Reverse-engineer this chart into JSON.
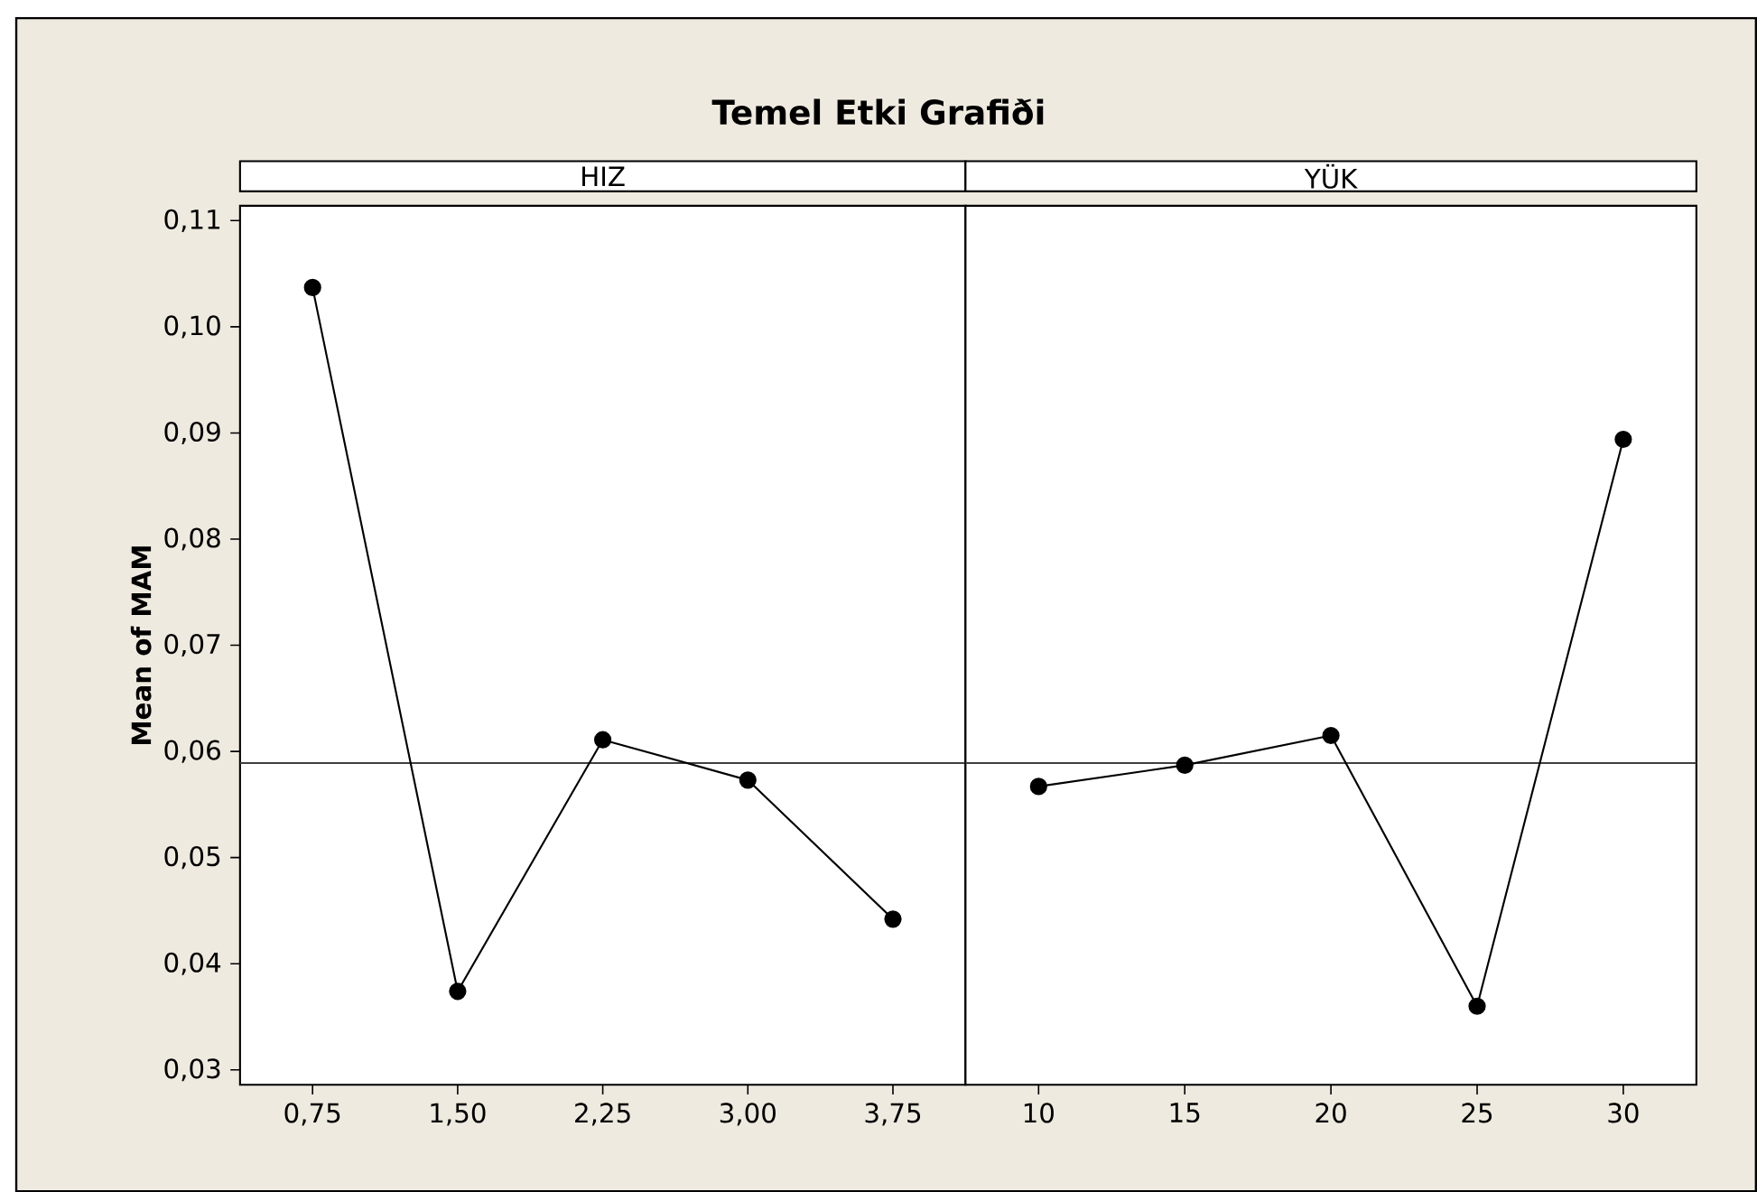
{
  "chart_data": [
    {
      "type": "line",
      "title": "Temel Etki Grafiði",
      "subtitle": "HIZ",
      "ylabel": "Mean of MAM",
      "categories": [
        "0,75",
        "1,50",
        "2,25",
        "3,00",
        "3,75"
      ],
      "series": [
        {
          "color": "#000000",
          "values": [
            0.1037,
            0.0374,
            0.0611,
            0.0573,
            0.0442
          ]
        }
      ],
      "ylim": [
        0.0286,
        0.1114
      ],
      "yticks": [
        {
          "value": 0.03,
          "label": "0,03"
        },
        {
          "value": 0.04,
          "label": "0,04"
        },
        {
          "value": 0.05,
          "label": "0,05"
        },
        {
          "value": 0.06,
          "label": "0,06"
        },
        {
          "value": 0.07,
          "label": "0,07"
        },
        {
          "value": 0.08,
          "label": "0,08"
        },
        {
          "value": 0.09,
          "label": "0,09"
        },
        {
          "value": 0.1,
          "label": "0,10"
        },
        {
          "value": 0.11,
          "label": "0,11"
        }
      ],
      "ref_lines": [
        {
          "axis": "y",
          "value": 0.0589,
          "color": "#404040"
        }
      ],
      "marker": "circle",
      "line_style": "solid",
      "grid": false
    },
    {
      "type": "line",
      "subtitle": "YÜK",
      "categories": [
        "10",
        "15",
        "20",
        "25",
        "30"
      ],
      "series": [
        {
          "color": "#000000",
          "values": [
            0.0567,
            0.0587,
            0.0615,
            0.036,
            0.0894
          ]
        }
      ],
      "ylim": [
        0.0286,
        0.1114
      ],
      "tick_labels": "x",
      "ref_lines": [
        {
          "axis": "y",
          "value": 0.0589,
          "color": "#404040"
        }
      ],
      "marker": "circle",
      "line_style": "solid",
      "grid": false
    }
  ]
}
